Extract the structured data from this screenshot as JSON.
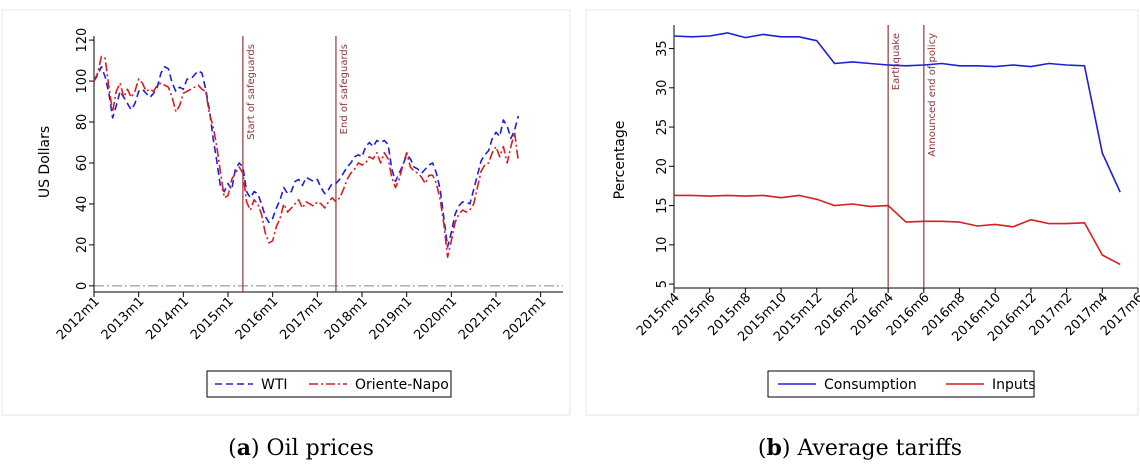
{
  "chart_data": [
    {
      "type": "line",
      "caption_letter": "a",
      "caption_text": "Oil prices",
      "ylabel": "US Dollars",
      "xlabel": "",
      "ylim": [
        -3,
        122
      ],
      "yticks": [
        0,
        20,
        40,
        60,
        80,
        100,
        120
      ],
      "xticks": [
        "2012m1",
        "2013m1",
        "2014m1",
        "2015m1",
        "2016m1",
        "2017m1",
        "2018m1",
        "2019m1",
        "2020m1",
        "2021m1",
        "2022m1"
      ],
      "x_index_range": [
        0,
        126
      ],
      "reference_hline": 0,
      "vlines": [
        {
          "x_index": 40,
          "label": "Start of safeguards"
        },
        {
          "x_index": 65,
          "label": "End of safeguards"
        }
      ],
      "legend_position": "bottom",
      "series": [
        {
          "name": "WTI",
          "color": "#1f1fd6",
          "style": "dashed",
          "x_index": [
            0,
            1,
            2,
            3,
            4,
            5,
            6,
            7,
            8,
            9,
            10,
            11,
            12,
            13,
            14,
            15,
            16,
            17,
            18,
            19,
            20,
            21,
            22,
            23,
            24,
            25,
            26,
            27,
            28,
            29,
            30,
            31,
            32,
            33,
            34,
            35,
            36,
            37,
            38,
            39,
            40,
            41,
            42,
            43,
            44,
            45,
            46,
            47,
            48,
            49,
            50,
            51,
            52,
            53,
            54,
            55,
            56,
            57,
            58,
            59,
            60,
            61,
            62,
            63,
            64,
            65,
            66,
            67,
            68,
            69,
            70,
            71,
            72,
            73,
            74,
            75,
            76,
            77,
            78,
            79,
            80,
            81,
            82,
            83,
            84,
            85,
            86,
            87,
            88,
            89,
            90,
            91,
            92,
            93,
            94,
            95,
            96,
            97,
            98,
            99,
            100,
            101,
            102,
            103,
            104,
            105,
            106,
            107,
            108,
            109,
            110,
            111,
            112,
            113,
            114
          ],
          "values": [
            100,
            103,
            107,
            102,
            94,
            82,
            88,
            95,
            92,
            89,
            86,
            89,
            95,
            96,
            94,
            92,
            94,
            97,
            104,
            107,
            106,
            99,
            95,
            97,
            96,
            101,
            101,
            103,
            105,
            104,
            96,
            86,
            72,
            61,
            48,
            46,
            50,
            47,
            57,
            60,
            58,
            46,
            43,
            46,
            45,
            40,
            34,
            31,
            33,
            38,
            42,
            48,
            45,
            46,
            51,
            52,
            49,
            53,
            52,
            51,
            52,
            48,
            45,
            47,
            50,
            50,
            52,
            55,
            58,
            60,
            63,
            64,
            63,
            68,
            70,
            68,
            71,
            70,
            71,
            69,
            57,
            51,
            55,
            59,
            64,
            62,
            58,
            57,
            55,
            57,
            59,
            60,
            55,
            47,
            33,
            19,
            26,
            35,
            39,
            41,
            41,
            40,
            47,
            54,
            61,
            64,
            66,
            72,
            75,
            73,
            81,
            78,
            72,
            76,
            83
          ]
        },
        {
          "name": "Oriente-Napo",
          "color": "#d61f1f",
          "style": "dashdot",
          "x_index": [
            0,
            1,
            2,
            3,
            4,
            5,
            6,
            7,
            8,
            9,
            10,
            11,
            12,
            13,
            14,
            15,
            16,
            17,
            18,
            19,
            20,
            21,
            22,
            23,
            24,
            25,
            26,
            27,
            28,
            29,
            30,
            31,
            32,
            33,
            34,
            35,
            36,
            37,
            38,
            39,
            40,
            41,
            42,
            43,
            44,
            45,
            46,
            47,
            48,
            49,
            50,
            51,
            52,
            53,
            54,
            55,
            56,
            57,
            58,
            59,
            60,
            61,
            62,
            63,
            64,
            65,
            66,
            67,
            68,
            69,
            70,
            71,
            72,
            73,
            74,
            75,
            76,
            77,
            78,
            79,
            80,
            81,
            82,
            83,
            84,
            85,
            86,
            87,
            88,
            89,
            90,
            91,
            92,
            93,
            94,
            95,
            96,
            97,
            98,
            99,
            100,
            101,
            102,
            103,
            104,
            105,
            106,
            107,
            108,
            109,
            110,
            111,
            112,
            113,
            114
          ],
          "values": [
            100,
            104,
            112,
            111,
            97,
            85,
            95,
            99,
            92,
            96,
            92,
            95,
            101,
            99,
            95,
            96,
            95,
            98,
            99,
            98,
            97,
            92,
            85,
            88,
            94,
            95,
            96,
            97,
            98,
            96,
            95,
            84,
            78,
            68,
            55,
            43,
            44,
            52,
            55,
            58,
            55,
            41,
            37,
            42,
            40,
            35,
            26,
            21,
            22,
            29,
            33,
            40,
            36,
            38,
            40,
            42,
            38,
            41,
            40,
            39,
            41,
            40,
            38,
            41,
            43,
            41,
            43,
            47,
            52,
            55,
            57,
            60,
            59,
            60,
            63,
            62,
            65,
            60,
            65,
            62,
            53,
            48,
            52,
            59,
            65,
            58,
            56,
            55,
            53,
            50,
            54,
            54,
            50,
            42,
            30,
            14,
            22,
            31,
            35,
            37,
            36,
            37,
            40,
            48,
            56,
            59,
            60,
            65,
            68,
            63,
            68,
            60,
            68,
            75,
            61
          ]
        }
      ]
    },
    {
      "type": "line",
      "caption_letter": "b",
      "caption_text": "Average tariffs",
      "ylabel": "Percentage",
      "xlabel": "",
      "ylim": [
        4.5,
        38
      ],
      "yticks": [
        5,
        10,
        15,
        20,
        25,
        30,
        35
      ],
      "xticks": [
        "2015m4",
        "2015m6",
        "2015m8",
        "2015m10",
        "2015m12",
        "2016m2",
        "2016m4",
        "2016m6",
        "2016m8",
        "2016m10",
        "2016m12",
        "2017m2",
        "2017m4",
        "2017m6"
      ],
      "x_index_range": [
        0,
        26
      ],
      "vlines": [
        {
          "x_index": 12,
          "label": "Earthquake"
        },
        {
          "x_index": 14,
          "label": "Announced end of policy"
        }
      ],
      "legend_position": "bottom",
      "series": [
        {
          "name": "Consumption",
          "color": "#1f1fd6",
          "style": "solid",
          "x_index": [
            0,
            1,
            2,
            3,
            4,
            5,
            6,
            7,
            8,
            9,
            10,
            11,
            12,
            13,
            14,
            15,
            16,
            17,
            18,
            19,
            20,
            21,
            22,
            23,
            24,
            25
          ],
          "values": [
            36.6,
            36.5,
            36.6,
            37.0,
            36.4,
            36.8,
            36.5,
            36.5,
            36.0,
            33.1,
            33.3,
            33.1,
            32.9,
            32.8,
            32.9,
            33.1,
            32.8,
            32.8,
            32.7,
            32.9,
            32.7,
            33.1,
            32.9,
            32.8,
            21.7,
            16.7
          ]
        },
        {
          "name": "Inputs",
          "color": "#d61f1f",
          "style": "solid",
          "x_index": [
            0,
            1,
            2,
            3,
            4,
            5,
            6,
            7,
            8,
            9,
            10,
            11,
            12,
            13,
            14,
            15,
            16,
            17,
            18,
            19,
            20,
            21,
            22,
            23,
            24,
            25
          ],
          "values": [
            16.3,
            16.3,
            16.2,
            16.3,
            16.2,
            16.3,
            16.0,
            16.3,
            15.8,
            15.0,
            15.2,
            14.9,
            15.0,
            12.9,
            13.0,
            13.0,
            12.9,
            12.4,
            12.6,
            12.3,
            13.2,
            12.7,
            12.7,
            12.8,
            8.7,
            7.5
          ]
        }
      ]
    }
  ]
}
